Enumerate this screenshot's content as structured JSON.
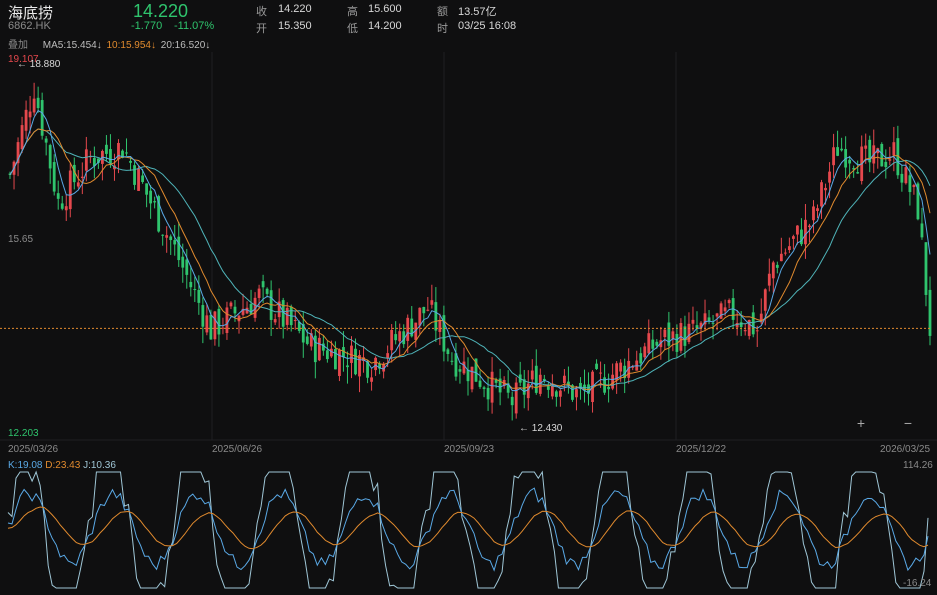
{
  "header": {
    "name": "海底捞",
    "code": "6862.HK",
    "price": "14.220",
    "change": "-1.770",
    "change_pct": "-11.07%",
    "stats": {
      "close_label": "收",
      "close": "14.220",
      "open_label": "开",
      "open": "15.350",
      "high_label": "高",
      "high": "15.600",
      "low_label": "低",
      "low": "14.200",
      "amount_label": "额",
      "amount": "13.57亿",
      "time_label": "时",
      "time": "03/25 16:08"
    }
  },
  "ma_bar": {
    "overlay_label": "叠加",
    "ma5": "MA5:15.454↓",
    "ma10": "10:15.954↓",
    "ma20": "20:16.520↓"
  },
  "main_chart": {
    "y_top": "19.107",
    "y_mid": "15.65",
    "y_bottom": "12.203",
    "max_marker": "18.880",
    "min_marker": "12.430",
    "x_labels": [
      "2025/03/26",
      "2025/06/26",
      "2025/09/23",
      "2025/12/22",
      "2026/03/25"
    ],
    "last_price": 14.22,
    "colors": {
      "up": "#e5484d",
      "down": "#2fc46d",
      "ma5": "#5aa9e6",
      "ma10": "#e08a2e",
      "ma20": "#4fb3b8"
    }
  },
  "kdj": {
    "k": "K:19.08",
    "d": "D:23.43",
    "j": "J:10.36",
    "y_top": "114.26",
    "y_bottom": "-16.24"
  },
  "controls": {
    "zoom_in": "+",
    "zoom_out": "−"
  }
}
